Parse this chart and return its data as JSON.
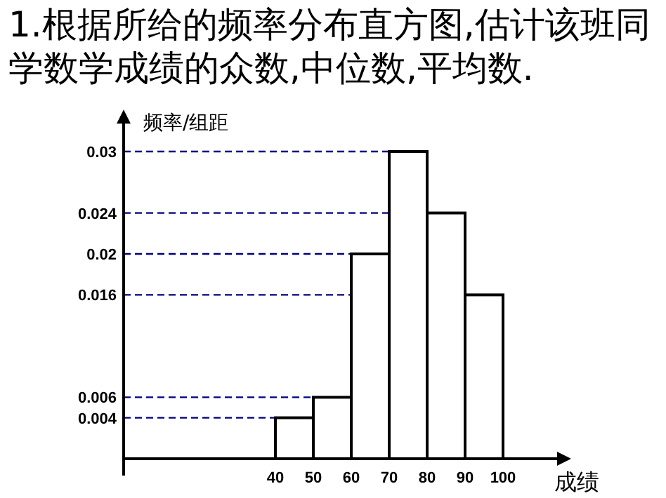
{
  "chart_data": {
    "type": "histogram",
    "title": "1.根据所给的频率分布直方图,估计该班同学数学成绩的众数,中位数,平均数.",
    "xlabel": "成绩",
    "ylabel": "频率/组距",
    "bins": [
      40,
      50,
      60,
      70,
      80,
      90,
      100
    ],
    "values": [
      0.004,
      0.006,
      0.02,
      0.03,
      0.024,
      0.016
    ],
    "color": "#ffffff",
    "xlim": [
      0,
      115
    ],
    "ylim": [
      0,
      0.033
    ],
    "xticks": [
      40,
      50,
      60,
      70,
      80,
      90,
      100
    ],
    "yticks": [
      0.004,
      0.006,
      0.016,
      0.02,
      0.024,
      0.03
    ],
    "ref_lines": [
      {
        "axis": "y",
        "value": 0.004,
        "line_style": "dashed",
        "color": "#000080"
      },
      {
        "axis": "y",
        "value": 0.006,
        "line_style": "dashed",
        "color": "#000080"
      },
      {
        "axis": "y",
        "value": 0.016,
        "line_style": "dashed",
        "color": "#000080"
      },
      {
        "axis": "y",
        "value": 0.02,
        "line_style": "dashed",
        "color": "#000080"
      },
      {
        "axis": "y",
        "value": 0.024,
        "line_style": "dashed",
        "color": "#000080"
      },
      {
        "axis": "y",
        "value": 0.03,
        "line_style": "dashed",
        "color": "#000080"
      }
    ],
    "grid": false
  }
}
